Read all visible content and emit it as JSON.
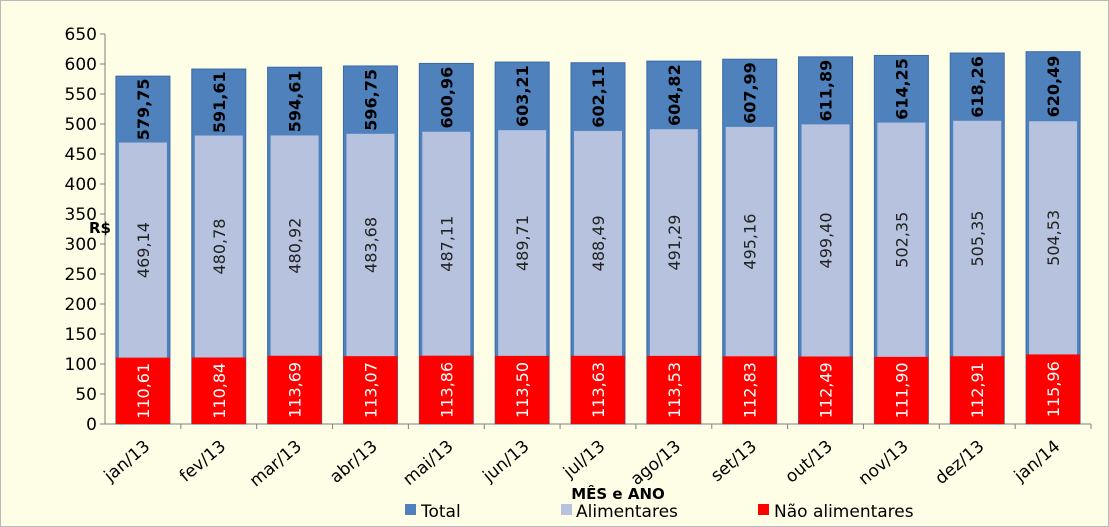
{
  "colors": {
    "total": "#4f81bd",
    "alimentares": "#b6c2de",
    "nao_alimentares": "#ff0000",
    "background": "#fefde6"
  },
  "chart_data": {
    "type": "bar",
    "stacked": true,
    "categories": [
      "jan/13",
      "fev/13",
      "mar/13",
      "abr/13",
      "mai/13",
      "jun/13",
      "jul/13",
      "ago/13",
      "set/13",
      "out/13",
      "nov/13",
      "dez/13",
      "jan/14"
    ],
    "series": [
      {
        "name": "Não alimentares",
        "labels": [
          "110,61",
          "110,84",
          "113,69",
          "113,07",
          "113,86",
          "113,50",
          "113,63",
          "113,53",
          "112,83",
          "112,49",
          "111,90",
          "112,91",
          "115,96"
        ]
      },
      {
        "name": "Alimentares",
        "labels": [
          "469,14",
          "480,78",
          "480,92",
          "483,68",
          "487,11",
          "489,71",
          "488,49",
          "491,29",
          "495,16",
          "499,40",
          "502,35",
          "505,35",
          "504,53"
        ]
      },
      {
        "name": "Total",
        "values": [
          579.75,
          591.61,
          594.61,
          596.75,
          600.96,
          603.21,
          602.11,
          604.82,
          607.99,
          611.89,
          614.25,
          618.26,
          620.49
        ],
        "labels": [
          "579,75",
          "591,61",
          "594,61",
          "596,75",
          "600,96",
          "603,21",
          "602,11",
          "604,82",
          "607,99",
          "611,89",
          "614,25",
          "618,26",
          "620,49"
        ]
      }
    ],
    "xlabel": "MÊS e ANO",
    "ylabel": "R$",
    "ylim": [
      0,
      650
    ],
    "yticks": [
      0,
      50,
      100,
      150,
      200,
      250,
      300,
      350,
      400,
      450,
      500,
      550,
      600,
      650
    ],
    "grid": false,
    "legend": "bottom",
    "legend_entries": [
      "Total",
      "Alimentares",
      "Não alimentares"
    ]
  }
}
